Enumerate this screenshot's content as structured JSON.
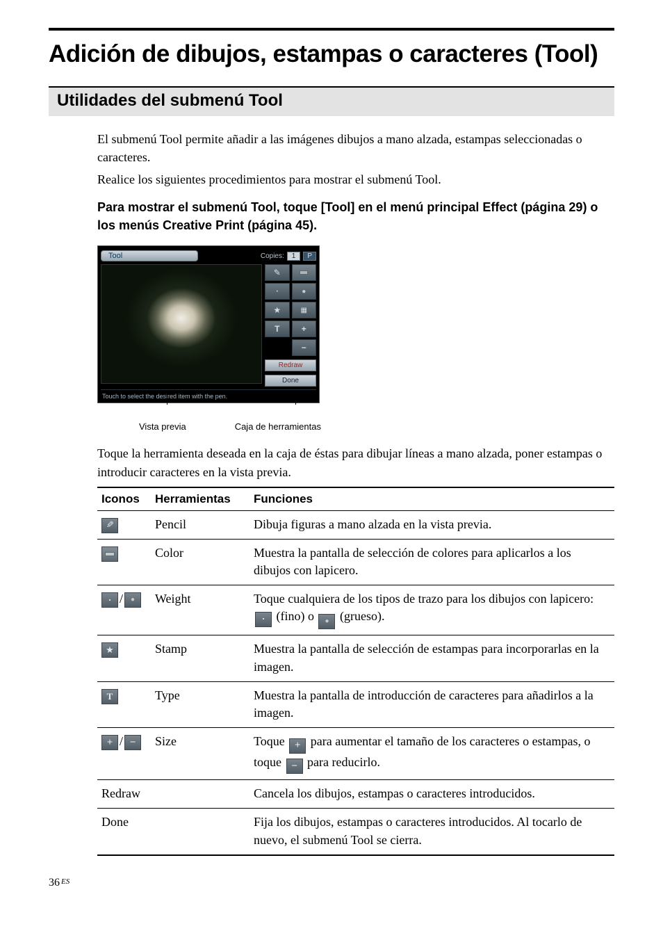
{
  "page": {
    "number": "36",
    "lang_suffix": "ES"
  },
  "title": "Adición de dibujos, estampas o caracteres (Tool)",
  "subtitle": "Utilidades del submenú Tool",
  "intro": {
    "p1": "El submenú Tool permite añadir a las imágenes dibujos a mano alzada, estampas seleccionadas o caracteres.",
    "p2": "Realice los siguientes procedimientos para mostrar el submenú Tool."
  },
  "instruction": "Para mostrar el submenú Tool, toque [Tool] en el menú principal Effect (página 29) o los menús Creative Print (página 45).",
  "screenshot": {
    "tool_label": "Tool",
    "copies_label": "Copies:",
    "copies_value": "1",
    "p_label": "P",
    "redraw": "Redraw",
    "done": "Done",
    "footer": "Touch to select the desired item with the pen."
  },
  "callouts": {
    "preview": "Vista previa",
    "toolbox": "Caja de herramientas"
  },
  "after_shot": "Toque la herramienta deseada en la caja de éstas para dibujar líneas a mano alzada, poner estampas o introducir caracteres en la vista previa.",
  "table": {
    "headers": {
      "icons": "Iconos",
      "tools": "Herramientas",
      "functions": "Funciones"
    },
    "rows": {
      "pencil": {
        "name": "Pencil",
        "desc": "Dibuja figuras a mano alzada en la vista previa."
      },
      "color": {
        "name": "Color",
        "desc": "Muestra la pantalla de selección de colores para aplicarlos a los dibujos con lapicero."
      },
      "weight": {
        "name": "Weight",
        "desc_pre": "Toque cualquiera de los tipos de trazo para los dibujos con lapicero: ",
        "desc_mid": " (fino) o ",
        "desc_post": " (grueso)."
      },
      "stamp": {
        "name": "Stamp",
        "desc": "Muestra la pantalla de selección de estampas para incorporarlas en la imagen."
      },
      "type": {
        "name": "Type",
        "desc": "Muestra la pantalla de introducción de caracteres para añadirlos a la imagen."
      },
      "size": {
        "name": "Size",
        "desc_pre": "Toque ",
        "desc_mid": " para aumentar el tamaño de los caracteres o estampas, o toque ",
        "desc_post": " para reducirlo."
      },
      "redraw": {
        "name": "Redraw",
        "desc": "Cancela los dibujos, estampas o caracteres introducidos."
      },
      "done": {
        "name": "Done",
        "desc": "Fija los dibujos, estampas o caracteres introducidos. Al tocarlo de nuevo, el submenú Tool se cierra."
      }
    }
  }
}
